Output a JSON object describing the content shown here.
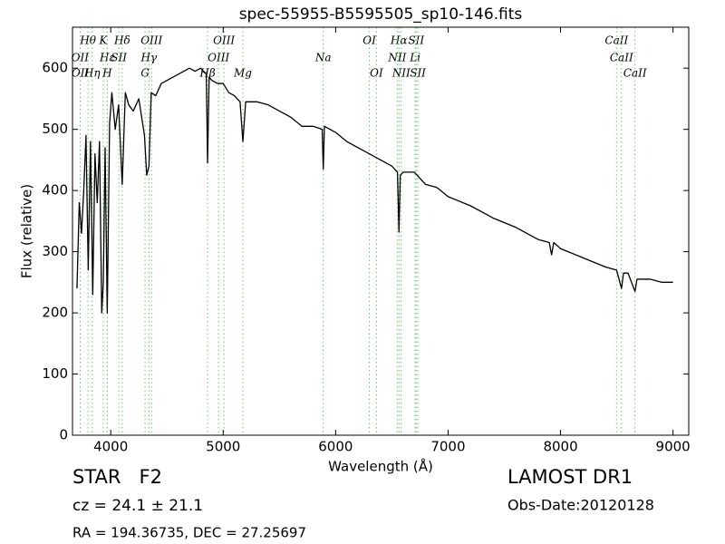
{
  "chart_data": {
    "type": "line",
    "title": "spec-55955-B5595505_sp10-146.fits",
    "x_label": "Wavelength (Å)",
    "y_label": "Flux (relative)",
    "xlim": [
      3660,
      9140
    ],
    "ylim": [
      0,
      667
    ],
    "xticks": [
      4000,
      5000,
      6000,
      7000,
      8000,
      9000
    ],
    "yticks": [
      0,
      100,
      200,
      300,
      400,
      500,
      600
    ],
    "grid": false,
    "color": "#000000",
    "line_marker_color": "#66cc66",
    "x": [
      3700,
      3720,
      3740,
      3760,
      3780,
      3800,
      3820,
      3840,
      3860,
      3880,
      3900,
      3920,
      3934,
      3950,
      3969,
      3990,
      4010,
      4040,
      4070,
      4102,
      4130,
      4160,
      4200,
      4250,
      4300,
      4320,
      4340,
      4360,
      4400,
      4450,
      4500,
      4550,
      4600,
      4650,
      4700,
      4750,
      4800,
      4850,
      4861,
      4875,
      4900,
      4950,
      5000,
      5050,
      5100,
      5150,
      5175,
      5200,
      5300,
      5400,
      5500,
      5600,
      5700,
      5800,
      5880,
      5890,
      5900,
      6000,
      6100,
      6200,
      6300,
      6400,
      6500,
      6550,
      6563,
      6575,
      6600,
      6700,
      6800,
      6900,
      7000,
      7200,
      7400,
      7600,
      7800,
      7900,
      7920,
      7940,
      8000,
      8200,
      8400,
      8498,
      8520,
      8542,
      8560,
      8600,
      8662,
      8680,
      8800,
      8900,
      9000
    ],
    "values": [
      240,
      380,
      330,
      400,
      490,
      270,
      480,
      230,
      460,
      380,
      480,
      200,
      250,
      470,
      200,
      510,
      560,
      500,
      540,
      410,
      560,
      540,
      530,
      550,
      490,
      425,
      440,
      560,
      555,
      575,
      580,
      585,
      590,
      595,
      600,
      595,
      600,
      590,
      445,
      585,
      580,
      575,
      575,
      560,
      555,
      545,
      480,
      545,
      545,
      540,
      530,
      520,
      505,
      505,
      500,
      435,
      505,
      495,
      480,
      470,
      460,
      450,
      440,
      430,
      332,
      425,
      430,
      430,
      410,
      405,
      390,
      375,
      355,
      340,
      320,
      315,
      295,
      315,
      305,
      290,
      275,
      270,
      255,
      240,
      265,
      265,
      235,
      255,
      255,
      250,
      250
    ],
    "line_labels": [
      [
        {
          "label": "Hθ",
          "x": 3798
        },
        {
          "label": "K",
          "x": 3934
        },
        {
          "label": "Hδ",
          "x": 4102
        },
        {
          "label": "OIII",
          "x": 4363
        },
        {
          "label": "OIII",
          "x": 5007
        },
        {
          "label": "OI",
          "x": 6300
        },
        {
          "label": "Hα",
          "x": 6563
        },
        {
          "label": "SII",
          "x": 6716
        },
        {
          "label": "CaII",
          "x": 8498
        }
      ],
      [
        {
          "label": "OII",
          "x": 3727
        },
        {
          "label": "Hε",
          "x": 3970
        },
        {
          "label": "SII",
          "x": 4072
        },
        {
          "label": "Hγ",
          "x": 4340
        },
        {
          "label": "OIII",
          "x": 4959
        },
        {
          "label": "Na",
          "x": 5890
        },
        {
          "label": "NII",
          "x": 6548
        },
        {
          "label": "Li",
          "x": 6707
        },
        {
          "label": "CaII",
          "x": 8542
        }
      ],
      [
        {
          "label": "OII",
          "x": 3729
        },
        {
          "label": "Hη",
          "x": 3835
        },
        {
          "label": "H",
          "x": 3969
        },
        {
          "label": "G",
          "x": 4305
        },
        {
          "label": "Hβ",
          "x": 4861
        },
        {
          "label": "Mg",
          "x": 5175
        },
        {
          "label": "OI",
          "x": 6363
        },
        {
          "label": "NII",
          "x": 6583
        },
        {
          "label": "SII",
          "x": 6731
        },
        {
          "label": "CaII",
          "x": 8662
        }
      ]
    ],
    "footer": {
      "class": "STAR   F2",
      "cz": "cz = 24.1 ± 21.1",
      "coords": "RA = 194.36735, DEC = 27.25697",
      "survey": "LAMOST DR1",
      "obs_date": "Obs-Date:20120128"
    }
  }
}
